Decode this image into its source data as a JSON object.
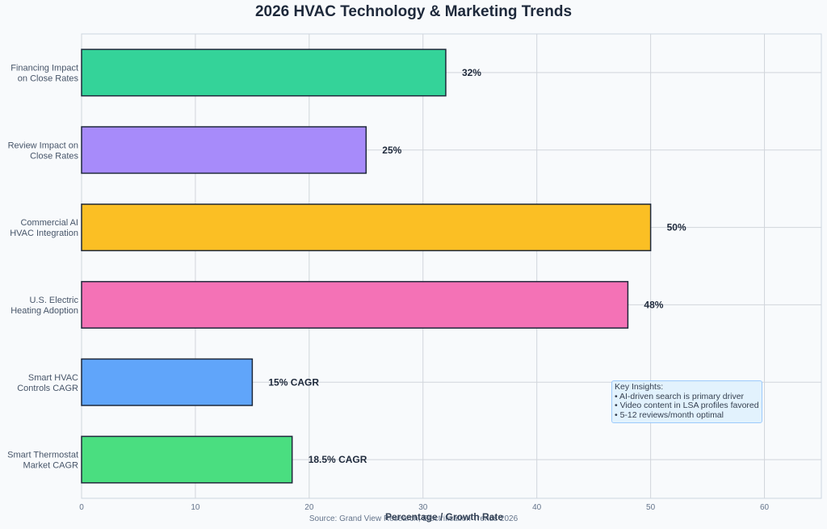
{
  "chart_data": {
    "type": "bar",
    "orientation": "horizontal",
    "title": "2026 HVAC Technology & Marketing Trends",
    "xlabel": "Percentage / Growth Rate",
    "ylabel": "",
    "xlim": [
      0,
      65
    ],
    "xticks": [
      0,
      10,
      20,
      30,
      40,
      50,
      60
    ],
    "grid": true,
    "categories": [
      [
        "Financing Impact",
        "on Close Rates"
      ],
      [
        "Review Impact on",
        "Close Rates"
      ],
      [
        "Commercial AI",
        "HVAC Integration"
      ],
      [
        "U.S. Electric",
        "Heating Adoption"
      ],
      [
        "Smart HVAC",
        "Controls CAGR"
      ],
      [
        "Smart Thermostat",
        "Market CAGR"
      ]
    ],
    "values": [
      32,
      25,
      50,
      48,
      15,
      18.5
    ],
    "data_labels": [
      "32%",
      "25%",
      "50%",
      "48%",
      "15% CAGR",
      "18.5% CAGR"
    ],
    "colors": [
      "#34d399",
      "#a78bfa",
      "#fbbf24",
      "#f472b6",
      "#60a5fa",
      "#4ade80"
    ],
    "annotation": {
      "heading": "Key Insights:",
      "items": [
        "• AI-driven search is primary driver",
        "• Video content in LSA profiles favored",
        "• 5-12 reviews/month optimal"
      ]
    },
    "source": "Source: Grand View Research, Electrification Trends 2026"
  }
}
